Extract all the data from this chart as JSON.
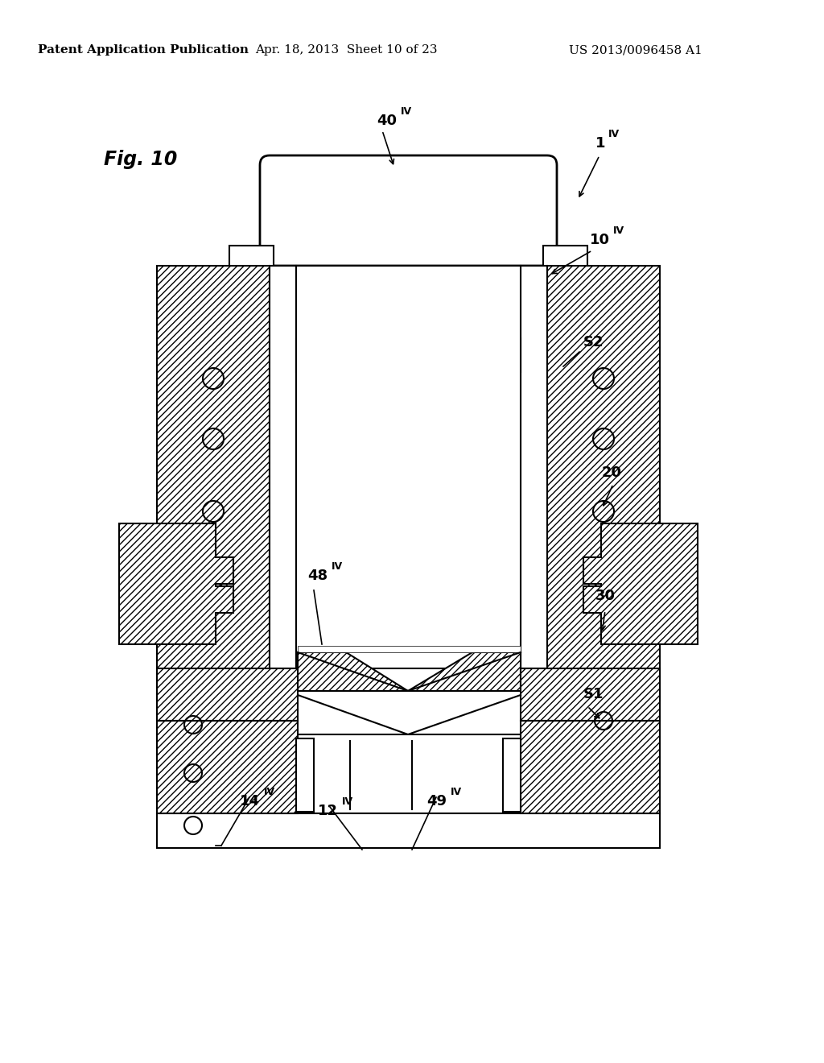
{
  "bg_color": "#ffffff",
  "line_color": "#000000",
  "header_text": "Patent Application Publication",
  "header_date": "Apr. 18, 2013  Sheet 10 of 23",
  "header_patent": "US 2013/0096458 A1",
  "fig_label": "Fig. 10"
}
